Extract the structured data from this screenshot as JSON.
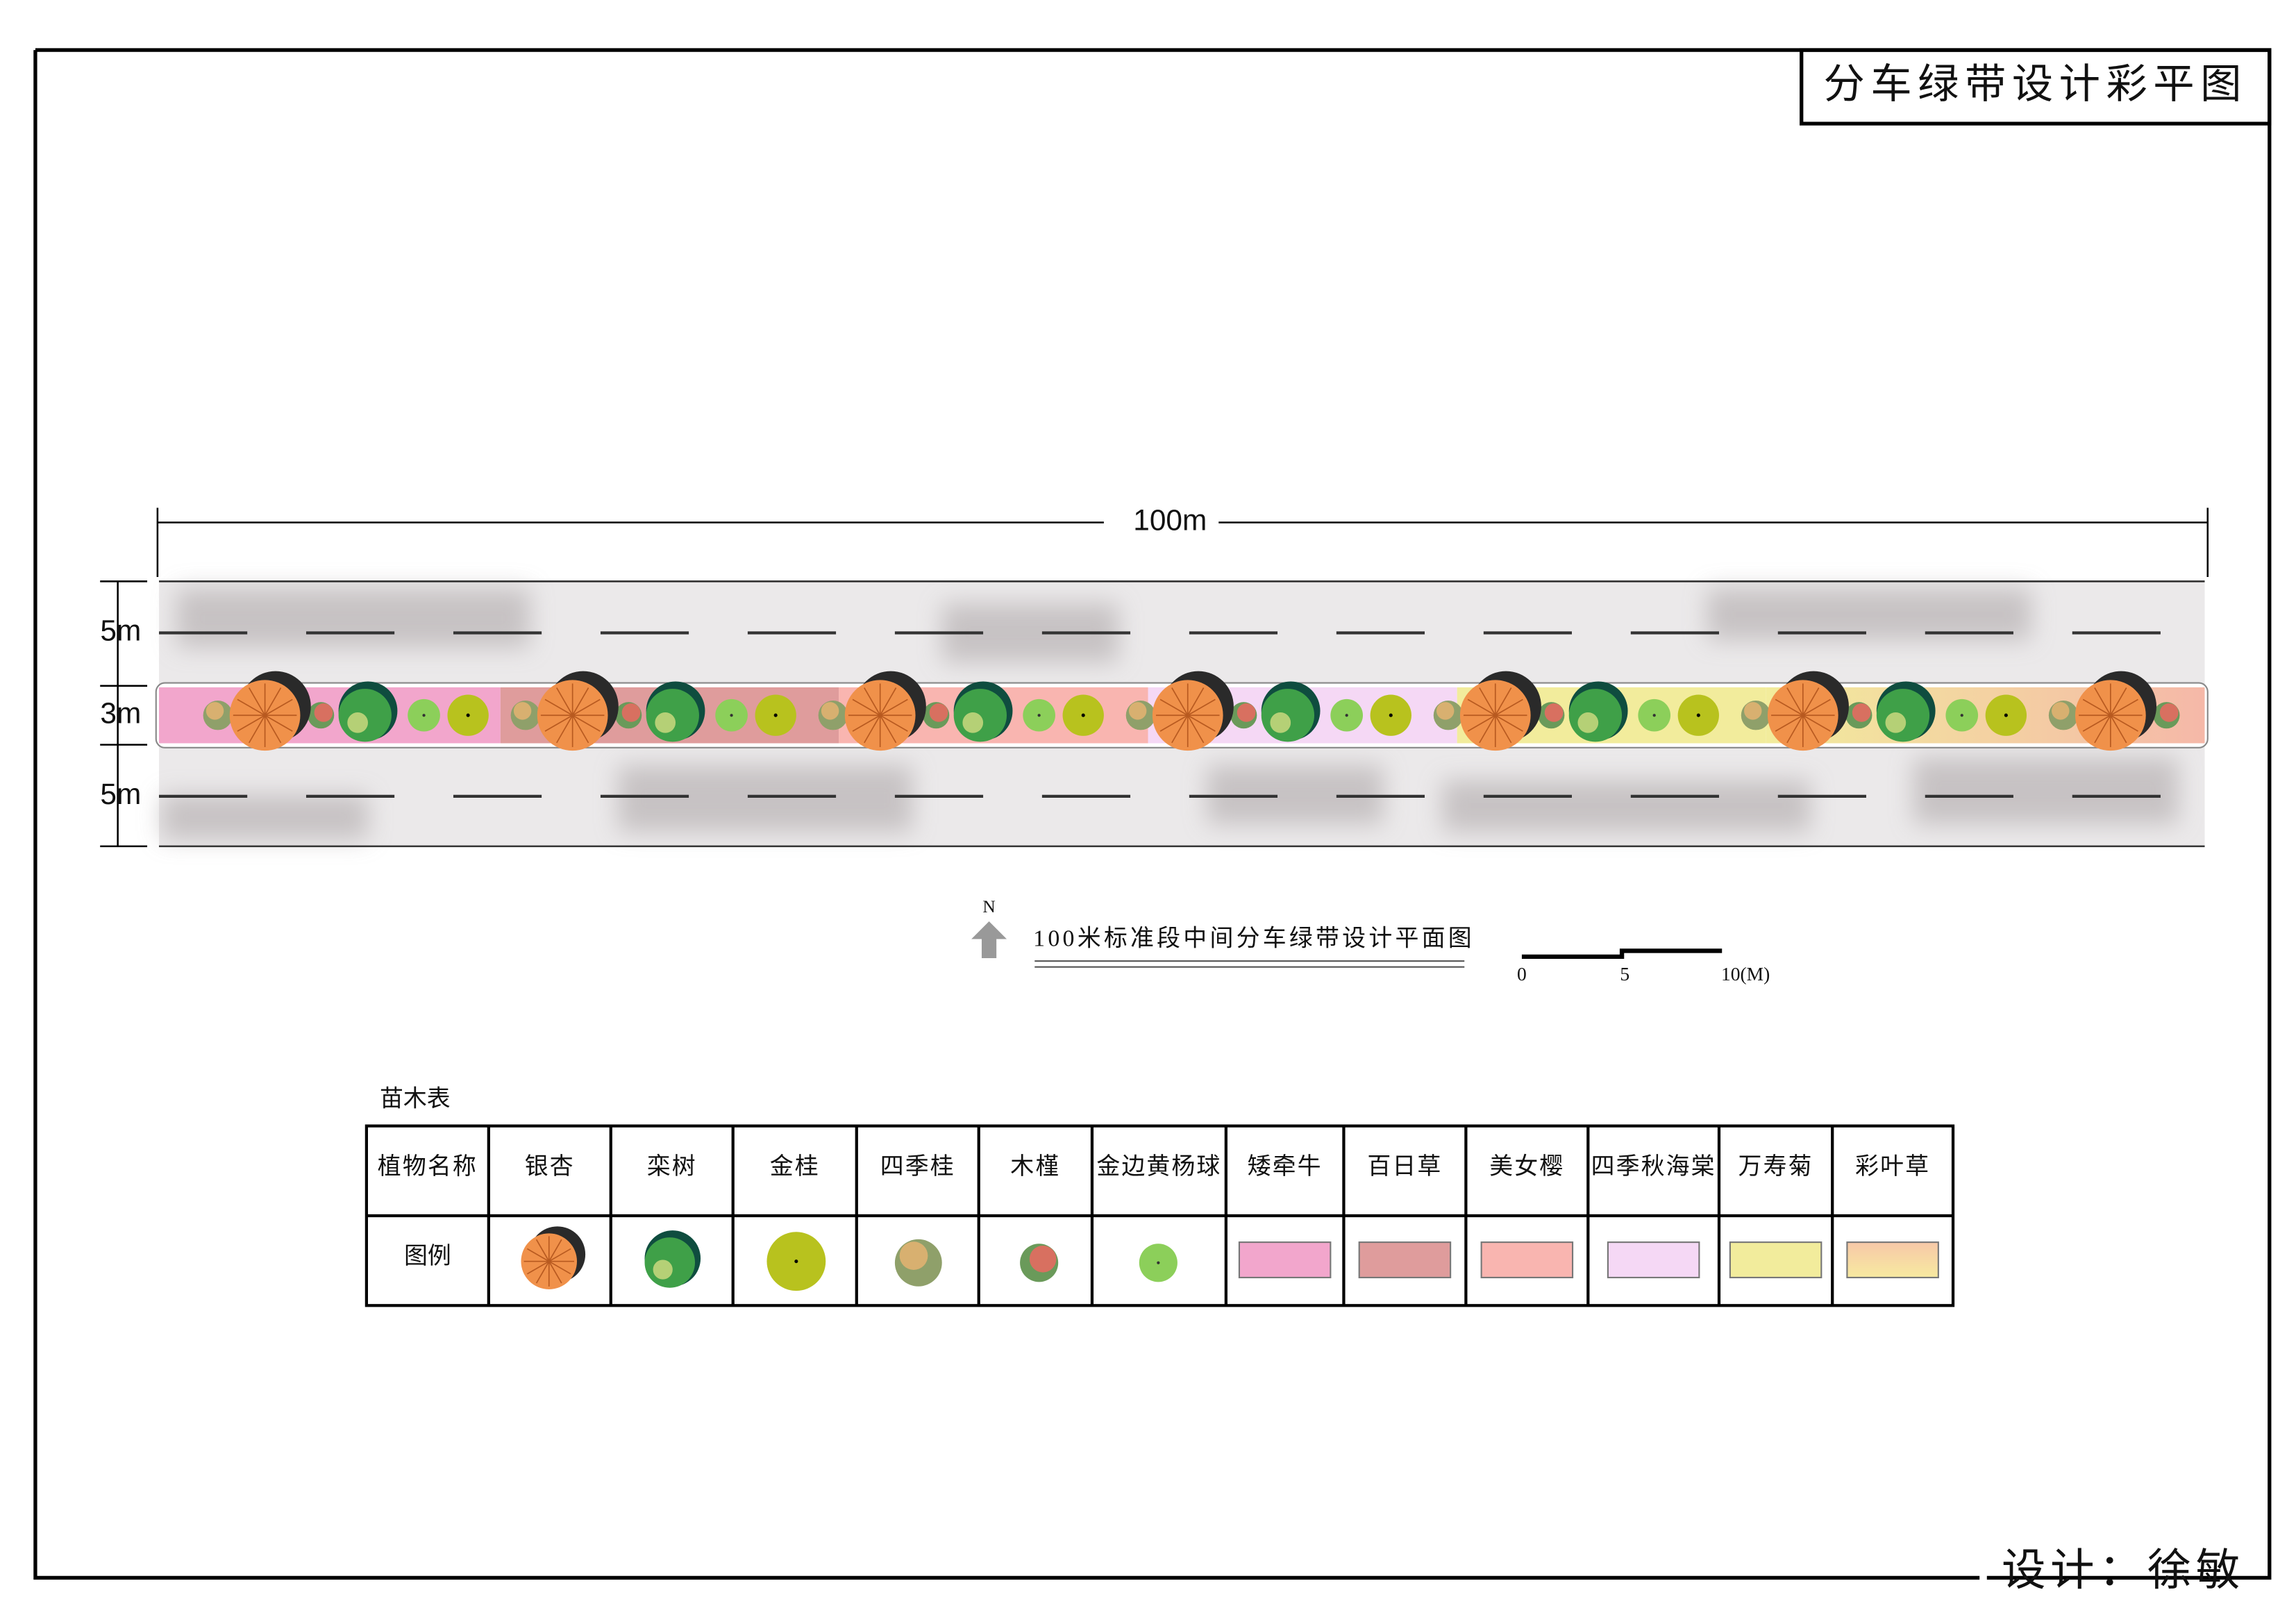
{
  "header": {
    "title": "分车绿带设计彩平图"
  },
  "plan": {
    "length_label": "100m",
    "widths": [
      "5m",
      "3m",
      "5m"
    ],
    "north": "N",
    "caption": "100米标准段中间分车绿带设计平面图",
    "scale_labels": [
      "0",
      "5",
      "10(M)"
    ]
  },
  "table": {
    "title": "苗木表",
    "header": [
      "植物名称",
      "银杏",
      "栾树",
      "金桂",
      "四季桂",
      "木槿",
      "金边黄杨球",
      "矮牵牛",
      "百日草",
      "美女樱",
      "四季秋海棠",
      "万寿菊",
      "彩叶草"
    ],
    "legend_label": "图例"
  },
  "footer": {
    "designer": "设计：徐敏"
  }
}
